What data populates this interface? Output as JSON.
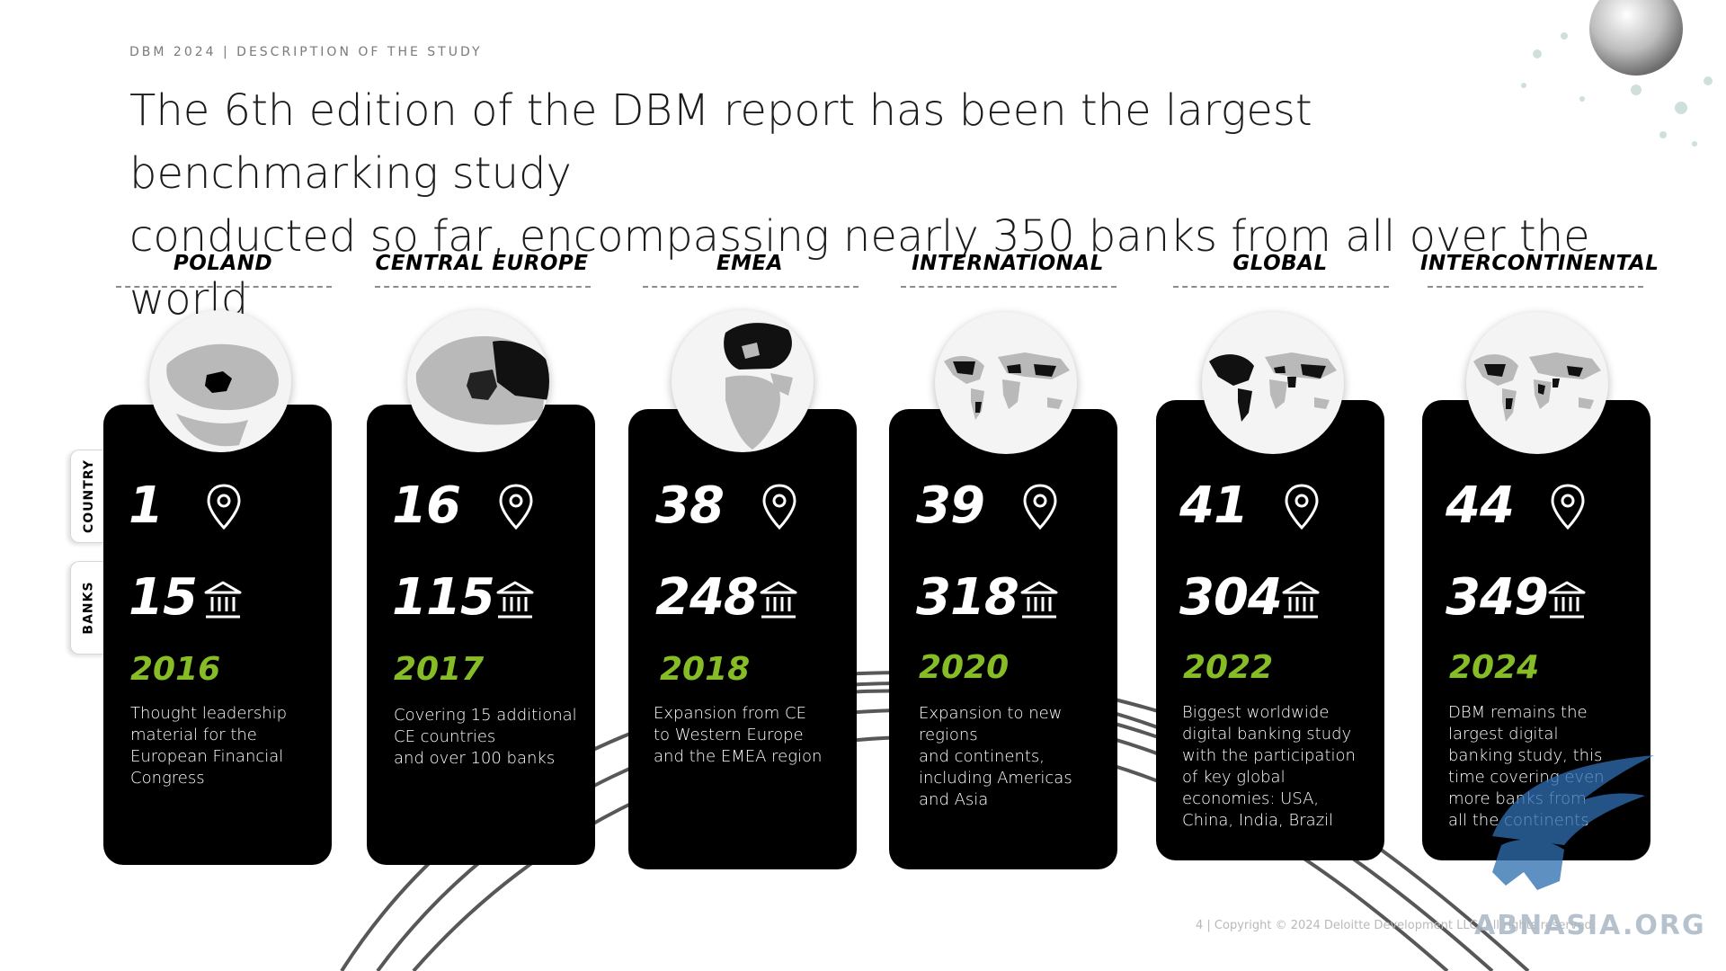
{
  "header": {
    "kicker": "DBM 2024 | DESCRIPTION OF THE STUDY",
    "title_line1": "The 6th edition of the DBM report has been the largest benchmarking study",
    "title_line2": "conducted so far, encompassing nearly 350 banks from all over the world"
  },
  "side_labels": {
    "country": "COUNTRY",
    "banks": "BANKS"
  },
  "columns": [
    {
      "heading": "POLAND",
      "countries": "1",
      "banks": "15",
      "year": "2016",
      "description": [
        "Thought leadership",
        "material for the",
        "European Financial",
        "Congress"
      ]
    },
    {
      "heading": "CENTRAL EUROPE",
      "countries": "16",
      "banks": "115",
      "year": "2017",
      "description": [
        "Covering 15 additional",
        "CE countries",
        "and over 100 banks"
      ]
    },
    {
      "heading": "EMEA",
      "countries": "38",
      "banks": "248",
      "year": "2018",
      "description": [
        "Expansion from CE",
        "to Western Europe",
        "and the EMEA region"
      ]
    },
    {
      "heading": "INTERNATIONAL",
      "countries": "39",
      "banks": "318",
      "year": "2020",
      "description": [
        "Expansion to new",
        "regions",
        "and continents,",
        "including Americas",
        "and Asia"
      ]
    },
    {
      "heading": "GLOBAL",
      "countries": "41",
      "banks": "304",
      "year": "2022",
      "description": [
        "Biggest worldwide",
        "digital banking study",
        "with the participation",
        "of key global",
        "economies: USA,",
        "China, India, Brazil"
      ]
    },
    {
      "heading": "INTERCONTINENTAL",
      "countries": "44",
      "banks": "349",
      "year": "2024",
      "description": [
        "DBM remains the",
        "largest digital",
        "banking study, this",
        "time covering even",
        "more banks from",
        "all the continents"
      ]
    }
  ],
  "icons": {
    "country": "location-pin-icon",
    "banks": "bank-building-icon"
  },
  "footer": {
    "copyright": "4 | Copyright © 2024 Deloitte Development LLC. All rights reserved."
  },
  "watermark": {
    "text": "ABNASIA.ORG"
  },
  "colors": {
    "accent_green": "#86bc25",
    "card_black": "#000000",
    "text_dark": "#1c1c1c"
  }
}
